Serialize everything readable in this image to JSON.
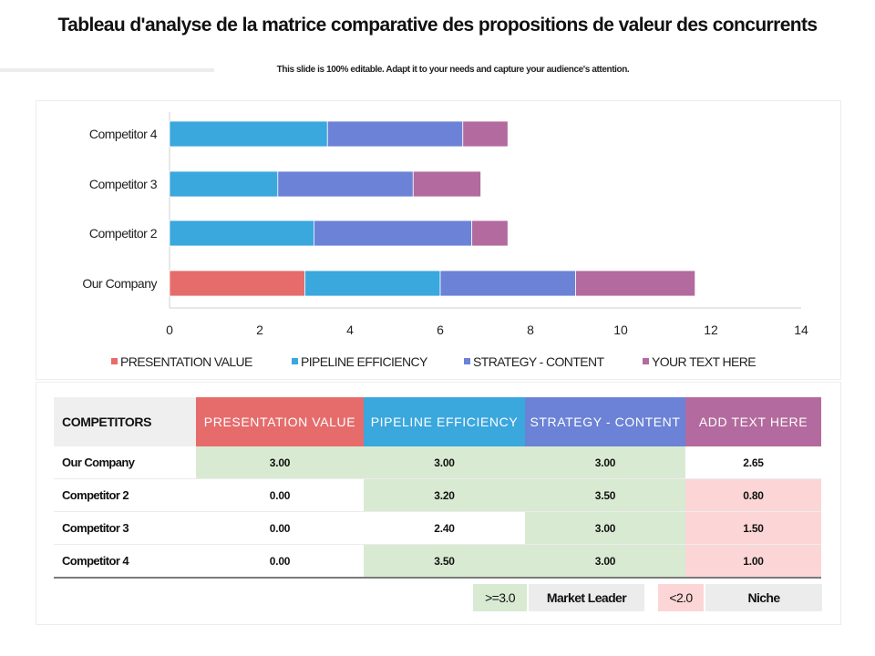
{
  "header": {
    "title": "Tableau d'analyse de la matrice comparative des propositions de valeur des concurrents",
    "subtitle": "This slide is 100% editable. Adapt it to your needs and capture your audience's attention."
  },
  "chart_data": {
    "type": "bar",
    "orientation": "horizontal",
    "stacked": true,
    "categories": [
      "Our Company",
      "Competitor 2",
      "Competitor 3",
      "Competitor 4"
    ],
    "series": [
      {
        "name": "PRESENTATION VALUE",
        "color": "#e66c6c",
        "values": [
          3.0,
          0.0,
          0.0,
          0.0
        ]
      },
      {
        "name": "PIPELINE EFFICIENCY",
        "color": "#3aa7dd",
        "values": [
          3.0,
          3.2,
          2.4,
          3.5
        ]
      },
      {
        "name": "STRATEGY - CONTENT",
        "color": "#6b82d6",
        "values": [
          3.0,
          3.5,
          3.0,
          3.0
        ]
      },
      {
        "name": "YOUR TEXT HERE",
        "color": "#b36a9e",
        "values": [
          2.65,
          0.8,
          1.5,
          1.0
        ]
      }
    ],
    "xlim": [
      0,
      14
    ],
    "xticks": [
      "0",
      "2",
      "4",
      "6",
      "8",
      "10",
      "12",
      "14"
    ],
    "grid": false,
    "legend_position": "bottom"
  },
  "table": {
    "header_label": "COMPETITORS",
    "columns": [
      {
        "label": "PRESENTATION VALUE",
        "color": "#e66c6c"
      },
      {
        "label": "PIPELINE EFFICIENCY",
        "color": "#3aa7dd"
      },
      {
        "label": "STRATEGY - CONTENT",
        "color": "#6b82d6"
      },
      {
        "label": "ADD TEXT HERE",
        "color": "#b36a9e"
      }
    ],
    "rows": [
      {
        "label": "Our Company",
        "values": [
          "3.00",
          "3.00",
          "3.00",
          "2.65"
        ],
        "highlight": [
          "green",
          "green",
          "green",
          "white"
        ]
      },
      {
        "label": "Competitor 2",
        "values": [
          "0.00",
          "3.20",
          "3.50",
          "0.80"
        ],
        "highlight": [
          "white",
          "green",
          "green",
          "pink"
        ]
      },
      {
        "label": "Competitor 3",
        "values": [
          "0.00",
          "2.40",
          "3.00",
          "1.50"
        ],
        "highlight": [
          "white",
          "white",
          "green",
          "pink"
        ]
      },
      {
        "label": "Competitor 4",
        "values": [
          "0.00",
          "3.50",
          "3.00",
          "1.00"
        ],
        "highlight": [
          "white",
          "green",
          "green",
          "pink"
        ]
      }
    ]
  },
  "key": {
    "high_threshold": ">=3.0",
    "high_label": "Market Leader",
    "low_threshold": "<2.0",
    "low_label": "Niche",
    "high_color": "#d9ead3",
    "low_color": "#fcd6d6",
    "label_bg_color": "#ececec"
  }
}
